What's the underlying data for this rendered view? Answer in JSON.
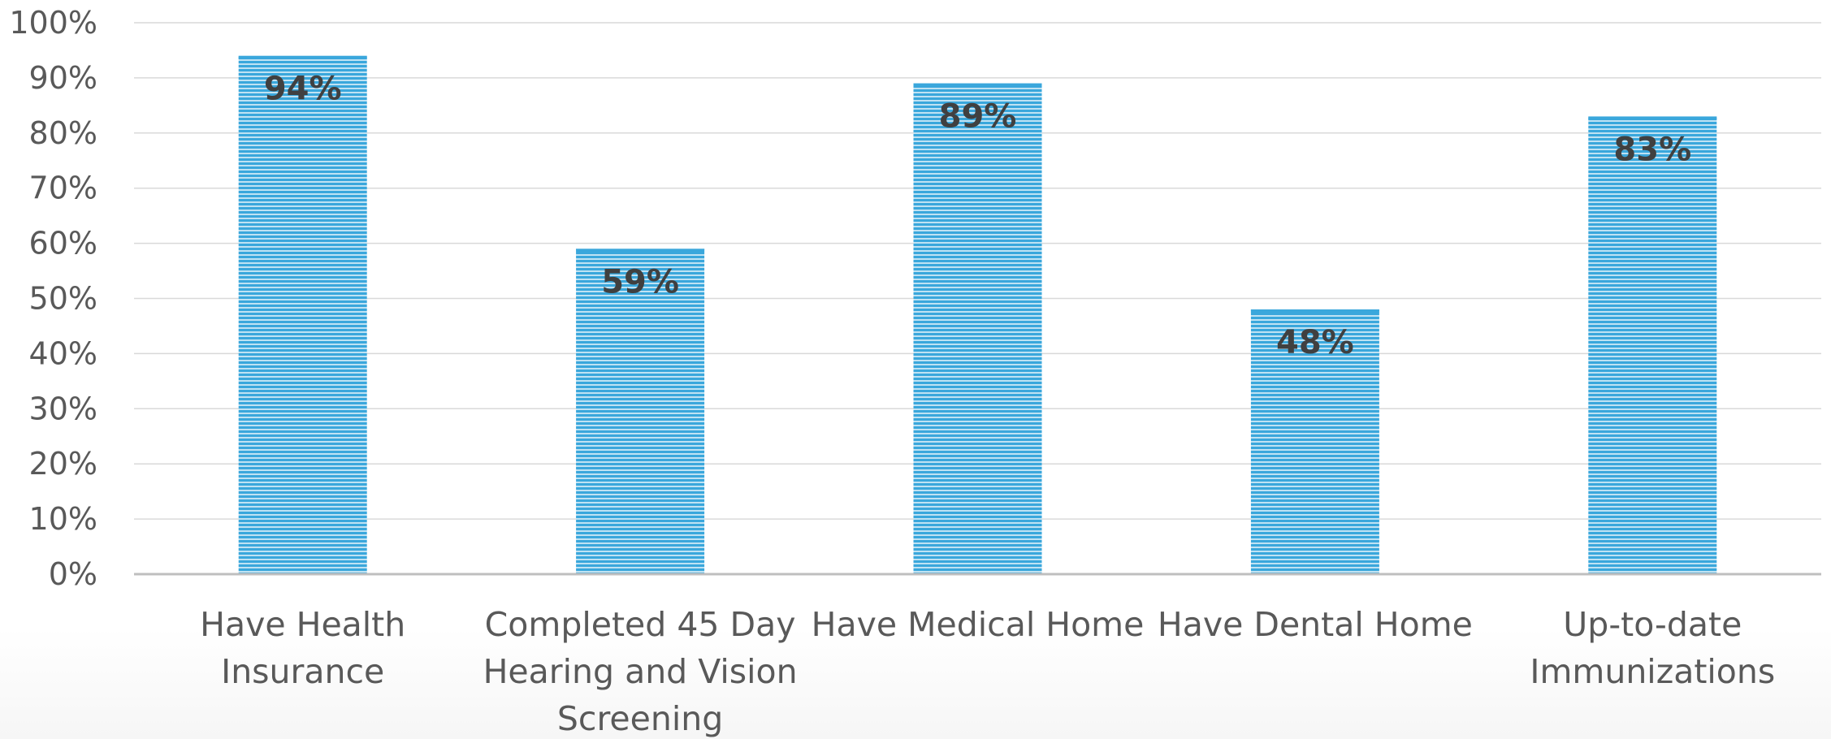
{
  "chart_data": {
    "type": "bar",
    "title": "",
    "xlabel": "",
    "ylabel": "",
    "categories": [
      [
        "Have Health",
        "Insurance"
      ],
      [
        "Completed 45 Day",
        "Hearing and Vision",
        "Screening"
      ],
      [
        "Have Medical Home"
      ],
      [
        "Have Dental Home"
      ],
      [
        "Up-to-date",
        "Immunizations"
      ]
    ],
    "values": [
      94,
      59,
      89,
      48,
      83
    ],
    "data_labels": [
      "94%",
      "59%",
      "89%",
      "48%",
      "83%"
    ],
    "ylim": [
      0,
      100
    ],
    "yticks": [
      0,
      10,
      20,
      30,
      40,
      50,
      60,
      70,
      80,
      90,
      100
    ],
    "ytick_labels": [
      "0%",
      "10%",
      "20%",
      "30%",
      "40%",
      "50%",
      "60%",
      "70%",
      "80%",
      "90%",
      "100%"
    ],
    "grid": true,
    "legend": "none",
    "colors": {
      "bar": "#3aa7dc",
      "bar_stripe": "#bfe2f3",
      "grid": "#d9d9d9",
      "axis": "#bfbfbf"
    }
  }
}
